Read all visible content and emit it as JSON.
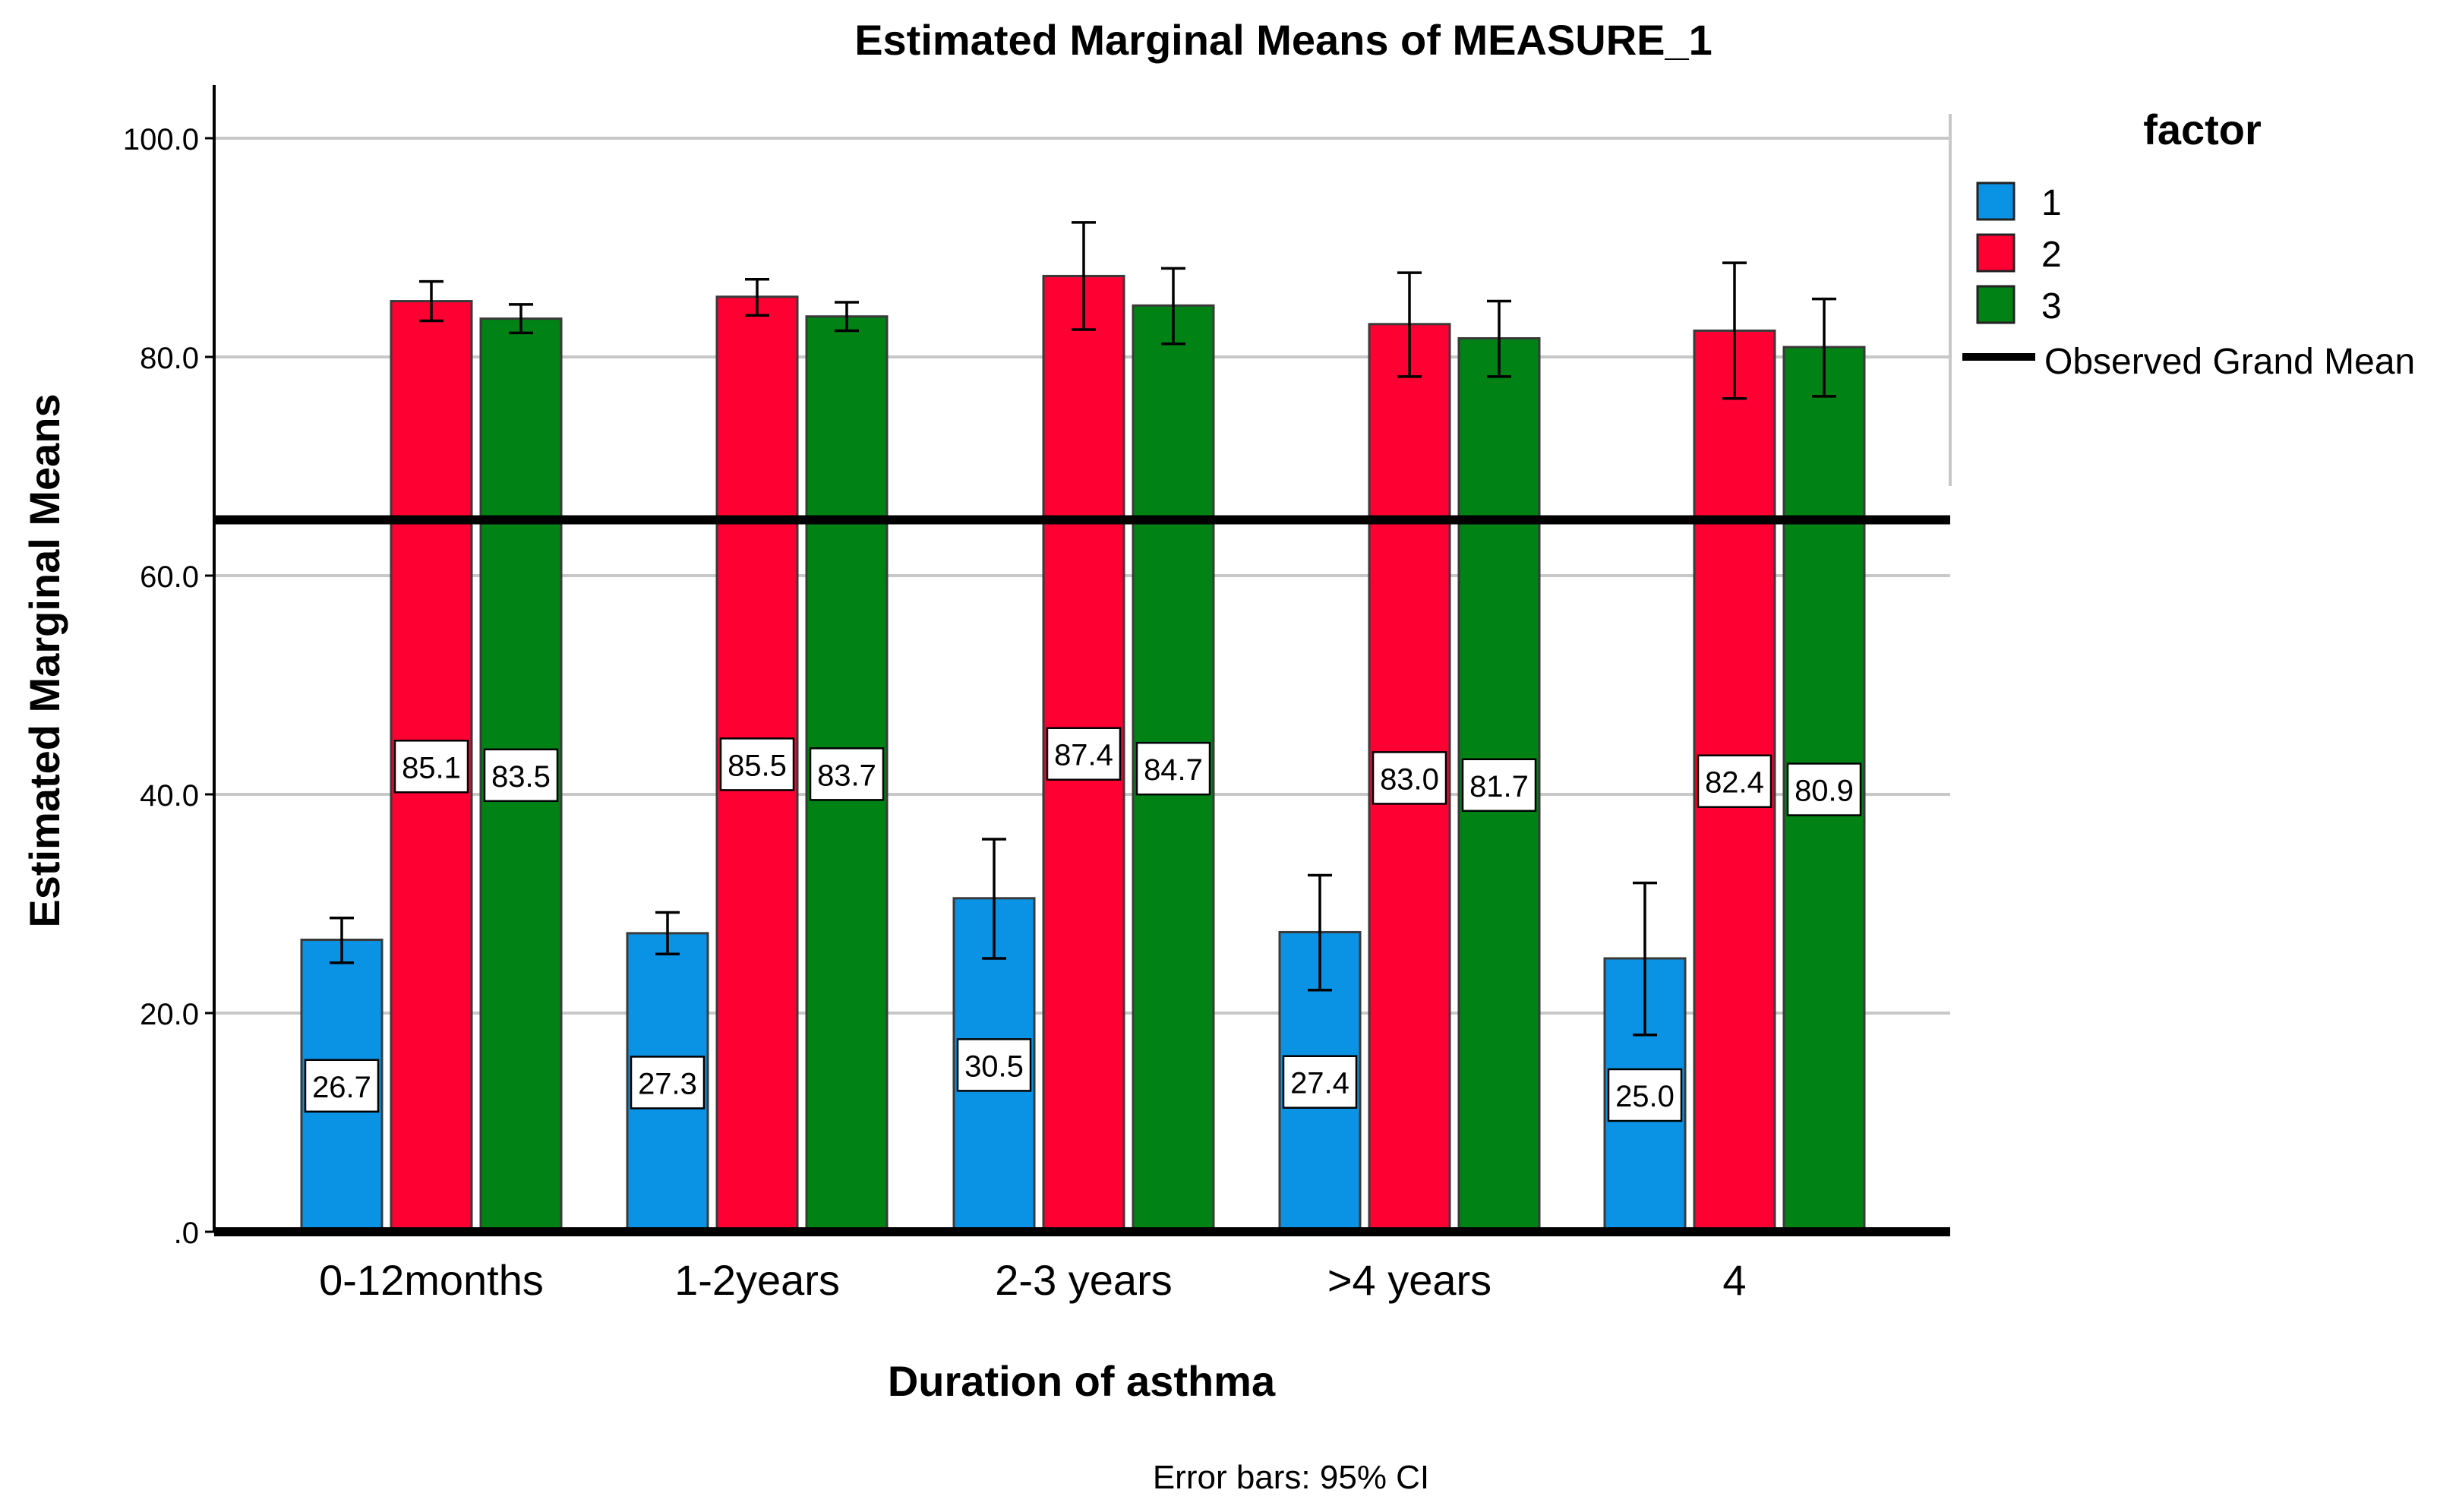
{
  "chart_data": {
    "type": "bar",
    "title": "Estimated Marginal Means of MEASURE_1",
    "xlabel": "Duration of asthma",
    "ylabel": "Estimated Marginal Means",
    "footnote": "Error bars: 95% CI",
    "legend_title": "factor",
    "legend_placement": "right",
    "grid": true,
    "ylim": [
      0,
      105
    ],
    "yticks": [
      {
        "value": 0,
        "label": ".0"
      },
      {
        "value": 20,
        "label": "20.0"
      },
      {
        "value": 40,
        "label": "40.0"
      },
      {
        "value": 60,
        "label": "60.0"
      },
      {
        "value": 80,
        "label": "80.0"
      },
      {
        "value": 100,
        "label": "100.0"
      }
    ],
    "categories": [
      "0-12months",
      "1-2years",
      "2-3 years",
      ">4 years",
      "4"
    ],
    "series": [
      {
        "name": "1",
        "color": "#0a93e4",
        "values": [
          26.7,
          27.3,
          30.5,
          27.4,
          25.0
        ],
        "labels": [
          "26.7",
          "27.3",
          "30.5",
          "27.4",
          "25.0"
        ],
        "ci_low": [
          24.6,
          25.4,
          25.0,
          22.1,
          18.0
        ],
        "ci_high": [
          28.7,
          29.2,
          35.9,
          32.6,
          31.9
        ]
      },
      {
        "name": "2",
        "color": "#ff0033",
        "values": [
          85.1,
          85.5,
          87.4,
          83.0,
          82.4
        ],
        "labels": [
          "85.1",
          "85.5",
          "87.4",
          "83.0",
          "82.4"
        ],
        "ci_low": [
          83.3,
          83.8,
          82.5,
          78.2,
          76.2
        ],
        "ci_high": [
          86.9,
          87.1,
          92.3,
          87.7,
          88.6
        ]
      },
      {
        "name": "3",
        "color": "#008214",
        "values": [
          83.5,
          83.7,
          84.7,
          81.7,
          80.9
        ],
        "labels": [
          "83.5",
          "83.7",
          "84.7",
          "81.7",
          "80.9"
        ],
        "ci_low": [
          82.2,
          82.4,
          81.2,
          78.2,
          76.4
        ],
        "ci_high": [
          84.8,
          85.0,
          88.1,
          85.1,
          85.3
        ]
      }
    ],
    "reference_line": {
      "name": "Observed Grand Mean",
      "value": 65.1
    }
  }
}
